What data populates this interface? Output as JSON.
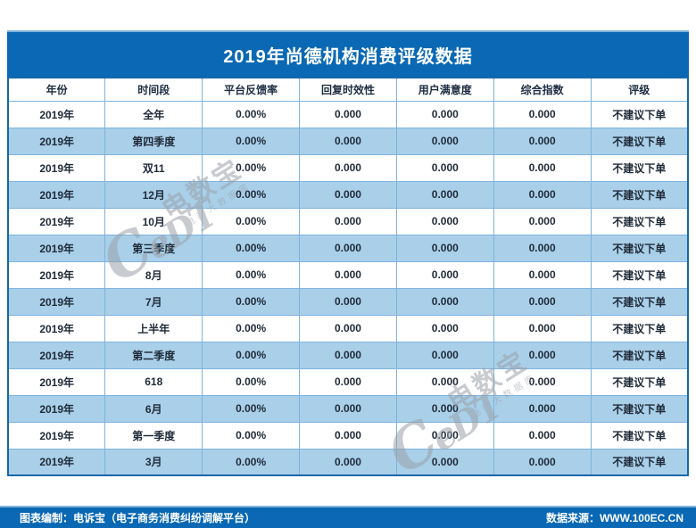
{
  "title": "2019年尚德机构消费评级数据",
  "table": {
    "columns": [
      "年份",
      "时间段",
      "平台反馈率",
      "回复时效性",
      "用户满意度",
      "综合指数",
      "评级"
    ],
    "rows": [
      [
        "2019年",
        "全年",
        "0.00%",
        "0.000",
        "0.000",
        "0.000",
        "不建议下单"
      ],
      [
        "2019年",
        "第四季度",
        "0.00%",
        "0.000",
        "0.000",
        "0.000",
        "不建议下单"
      ],
      [
        "2019年",
        "双11",
        "0.00%",
        "0.000",
        "0.000",
        "0.000",
        "不建议下单"
      ],
      [
        "2019年",
        "12月",
        "0.00%",
        "0.000",
        "0.000",
        "0.000",
        "不建议下单"
      ],
      [
        "2019年",
        "10月",
        "0.00%",
        "0.000",
        "0.000",
        "0.000",
        "不建议下单"
      ],
      [
        "2019年",
        "第三季度",
        "0.00%",
        "0.000",
        "0.000",
        "0.000",
        "不建议下单"
      ],
      [
        "2019年",
        "8月",
        "0.00%",
        "0.000",
        "0.000",
        "0.000",
        "不建议下单"
      ],
      [
        "2019年",
        "7月",
        "0.00%",
        "0.000",
        "0.000",
        "0.000",
        "不建议下单"
      ],
      [
        "2019年",
        "上半年",
        "0.00%",
        "0.000",
        "0.000",
        "0.000",
        "不建议下单"
      ],
      [
        "2019年",
        "第二季度",
        "0.00%",
        "0.000",
        "0.000",
        "0.000",
        "不建议下单"
      ],
      [
        "2019年",
        "618",
        "0.00%",
        "0.000",
        "0.000",
        "0.000",
        "不建议下单"
      ],
      [
        "2019年",
        "6月",
        "0.00%",
        "0.000",
        "0.000",
        "0.000",
        "不建议下单"
      ],
      [
        "2019年",
        "第一季度",
        "0.00%",
        "0.000",
        "0.000",
        "0.000",
        "不建议下单"
      ],
      [
        "2019年",
        "3月",
        "0.00%",
        "0.000",
        "0.000",
        "0.000",
        "不建议下单"
      ]
    ]
  },
  "footer": {
    "left": "图表编制：电诉宝（电子商务消费纠纷调解平台）",
    "right": "数据来源：WWW.100EC.CN"
  },
  "watermark": {
    "logo": "CeDT",
    "text": "电数宝",
    "subtext": "电商大数据库"
  },
  "colors": {
    "header_blue": "#0a68b4",
    "band_blue": "#a9cfe9",
    "cell_border_blue": "#7fb3dc",
    "outer_border_blue": "#1668a8",
    "text_dark": "#1f2a38"
  }
}
